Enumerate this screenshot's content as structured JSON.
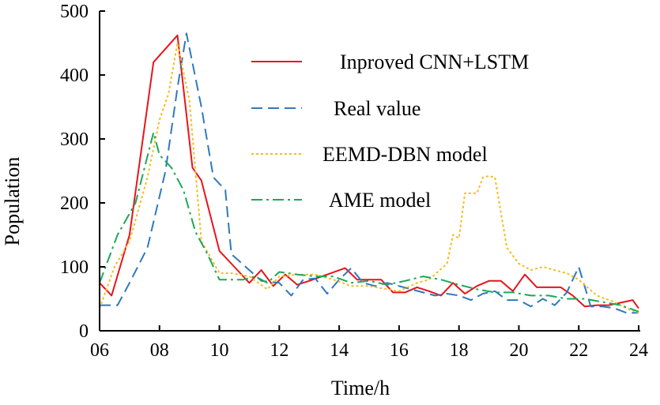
{
  "chart_data": {
    "type": "line",
    "title": "",
    "xlabel": "Time/h",
    "ylabel": "Population",
    "xlim": [
      6,
      24
    ],
    "ylim": [
      0,
      500
    ],
    "xticks": [
      6,
      8,
      10,
      12,
      14,
      16,
      18,
      20,
      22,
      24
    ],
    "xtick_labels": [
      "06",
      "08",
      "10",
      "12",
      "14",
      "16",
      "18",
      "20",
      "22",
      "24"
    ],
    "yticks": [
      0,
      100,
      200,
      300,
      400,
      500
    ],
    "ytick_labels": [
      "0",
      "100",
      "200",
      "300",
      "400",
      "500"
    ],
    "grid": false,
    "legend_position": "top-right",
    "series": [
      {
        "name": "Inproved CNN+LSTM",
        "color": "#e8141b",
        "dash": "solid",
        "x": [
          6.0,
          6.4,
          7.0,
          7.8,
          8.6,
          9.1,
          9.4,
          10.0,
          10.5,
          11.0,
          11.4,
          11.8,
          12.2,
          12.6,
          13.0,
          13.6,
          14.2,
          14.6,
          15.0,
          15.4,
          15.8,
          16.2,
          16.6,
          17.0,
          17.4,
          17.8,
          18.2,
          18.6,
          19.0,
          19.4,
          19.8,
          20.2,
          20.6,
          21.0,
          21.4,
          21.8,
          22.2,
          22.6,
          23.0,
          23.4,
          23.8,
          24.0
        ],
        "y": [
          75,
          55,
          150,
          420,
          462,
          255,
          235,
          125,
          100,
          75,
          95,
          70,
          88,
          72,
          78,
          88,
          98,
          80,
          80,
          80,
          60,
          60,
          68,
          62,
          55,
          75,
          58,
          70,
          78,
          78,
          62,
          88,
          68,
          68,
          68,
          55,
          38,
          40,
          40,
          44,
          48,
          35
        ]
      },
      {
        "name": "Real value",
        "color": "#2f79be",
        "dash": "dash",
        "x": [
          6.0,
          6.6,
          7.0,
          7.6,
          8.2,
          8.6,
          8.9,
          9.4,
          9.8,
          10.2,
          10.4,
          11.0,
          11.4,
          12.0,
          12.4,
          12.8,
          13.2,
          13.6,
          14.0,
          14.4,
          14.8,
          15.2,
          15.6,
          16.0,
          16.4,
          16.8,
          17.2,
          17.6,
          18.0,
          18.4,
          18.8,
          19.2,
          19.6,
          20.0,
          20.4,
          20.8,
          21.2,
          21.6,
          22.0,
          22.4,
          22.8,
          23.2,
          23.6,
          24.0
        ],
        "y": [
          40,
          40,
          75,
          130,
          250,
          380,
          465,
          350,
          240,
          220,
          120,
          95,
          78,
          75,
          55,
          80,
          82,
          58,
          80,
          98,
          75,
          70,
          75,
          70,
          65,
          60,
          55,
          58,
          55,
          48,
          58,
          62,
          48,
          48,
          38,
          50,
          40,
          60,
          100,
          38,
          38,
          35,
          28,
          28
        ]
      },
      {
        "name": "EEMD-DBN model",
        "color": "#f5bc1d",
        "dash": "dot",
        "x": [
          6.0,
          6.5,
          7.0,
          7.6,
          8.0,
          8.3,
          8.6,
          9.0,
          9.4,
          10.0,
          10.4,
          11.0,
          11.6,
          12.0,
          12.6,
          13.2,
          13.8,
          14.4,
          15.0,
          15.6,
          16.0,
          16.6,
          17.0,
          17.6,
          17.8,
          18.0,
          18.2,
          18.6,
          18.8,
          19.0,
          19.2,
          19.6,
          20.0,
          20.4,
          20.8,
          21.2,
          21.6,
          22.0,
          22.6,
          23.2,
          23.6,
          24.0
        ],
        "y": [
          35,
          100,
          140,
          240,
          330,
          370,
          450,
          360,
          140,
          90,
          90,
          85,
          65,
          85,
          88,
          88,
          80,
          70,
          70,
          65,
          62,
          75,
          80,
          105,
          150,
          145,
          215,
          215,
          240,
          242,
          240,
          130,
          105,
          95,
          100,
          95,
          90,
          80,
          55,
          45,
          35,
          28
        ]
      },
      {
        "name": "AME model",
        "color": "#1aa95a",
        "dash": "dashdot",
        "x": [
          6.0,
          6.6,
          7.2,
          7.8,
          8.0,
          8.4,
          8.8,
          9.2,
          9.6,
          10.0,
          10.4,
          10.8,
          11.2,
          11.6,
          12.0,
          12.6,
          13.2,
          13.8,
          14.4,
          15.0,
          15.6,
          16.2,
          16.8,
          17.4,
          18.0,
          18.6,
          19.2,
          19.8,
          20.4,
          21.0,
          21.6,
          22.2,
          22.8,
          23.4,
          24.0
        ],
        "y": [
          75,
          150,
          200,
          310,
          275,
          255,
          220,
          155,
          120,
          80,
          80,
          80,
          85,
          75,
          92,
          88,
          85,
          85,
          75,
          78,
          72,
          78,
          85,
          80,
          72,
          65,
          60,
          60,
          55,
          55,
          50,
          50,
          45,
          40,
          30
        ]
      }
    ]
  }
}
